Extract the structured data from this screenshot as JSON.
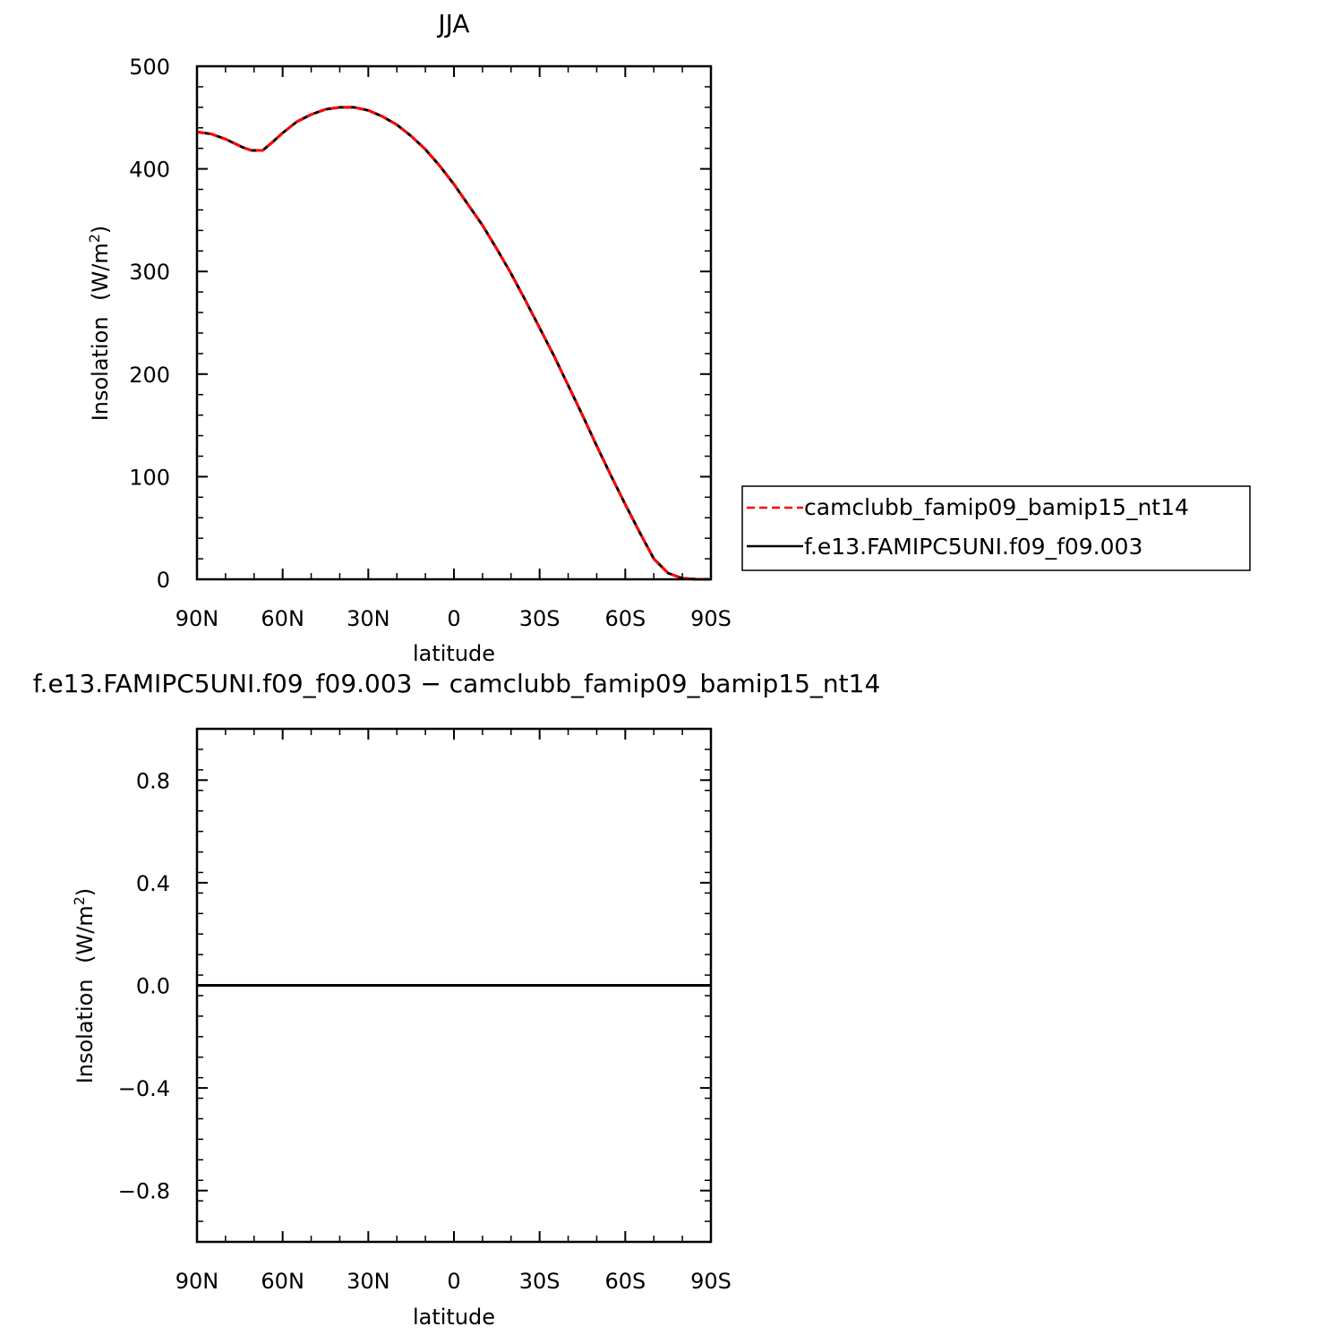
{
  "chart_data": [
    {
      "type": "line",
      "title": "JJA",
      "xlabel": "latitude",
      "ylabel": "Insolation",
      "ylabel_units": "(W/m",
      "ylabel_sup": "2",
      "ylabel_close": ")",
      "xlim": [
        -90,
        90
      ],
      "ylim": [
        0,
        500
      ],
      "x_ticks": [
        {
          "value": -90,
          "label": "90N"
        },
        {
          "value": -60,
          "label": "60N"
        },
        {
          "value": -30,
          "label": "30N"
        },
        {
          "value": 0,
          "label": "0"
        },
        {
          "value": 30,
          "label": "30S"
        },
        {
          "value": 60,
          "label": "60S"
        },
        {
          "value": 90,
          "label": "90S"
        }
      ],
      "y_ticks": [
        {
          "value": 0,
          "label": "0"
        },
        {
          "value": 100,
          "label": "100"
        },
        {
          "value": 200,
          "label": "200"
        },
        {
          "value": 300,
          "label": "300"
        },
        {
          "value": 400,
          "label": "400"
        },
        {
          "value": 500,
          "label": "500"
        }
      ],
      "legend_position": "right",
      "series": [
        {
          "name": "camclubb_famip09_bamip15_nt14",
          "color": "#ff0000",
          "dash": "dashed",
          "x": [
            -90,
            -85,
            -80,
            -77,
            -74,
            -71,
            -67,
            -64,
            -60,
            -55,
            -50,
            -45,
            -40,
            -35,
            -30,
            -25,
            -20,
            -15,
            -10,
            -5,
            0,
            5,
            10,
            15,
            20,
            25,
            30,
            35,
            40,
            45,
            50,
            55,
            60,
            65,
            70,
            75,
            80,
            85,
            90
          ],
          "y": [
            436,
            434,
            429,
            425,
            421,
            418,
            418,
            425,
            435,
            446,
            453,
            458,
            460,
            460,
            457,
            451,
            443,
            432,
            419,
            403,
            385,
            365,
            345,
            322,
            298,
            272,
            245,
            218,
            189,
            160,
            130,
            101,
            73,
            46,
            20,
            6,
            1,
            0,
            0
          ]
        },
        {
          "name": "f.e13.FAMIPC5UNI.f09_f09.003",
          "color": "#000000",
          "dash": "solid",
          "x": [
            -90,
            -85,
            -80,
            -77,
            -74,
            -71,
            -67,
            -64,
            -60,
            -55,
            -50,
            -45,
            -40,
            -35,
            -30,
            -25,
            -20,
            -15,
            -10,
            -5,
            0,
            5,
            10,
            15,
            20,
            25,
            30,
            35,
            40,
            45,
            50,
            55,
            60,
            65,
            70,
            75,
            80,
            85,
            90
          ],
          "y": [
            436,
            434,
            429,
            425,
            421,
            418,
            418,
            425,
            435,
            446,
            453,
            458,
            460,
            460,
            457,
            451,
            443,
            432,
            419,
            403,
            385,
            365,
            345,
            322,
            298,
            272,
            245,
            218,
            189,
            160,
            130,
            101,
            73,
            46,
            20,
            6,
            1,
            0,
            0
          ]
        }
      ]
    },
    {
      "type": "line",
      "title": "f.e13.FAMIPC5UNI.f09_f09.003 − camclubb_famip09_bamip15_nt14",
      "xlabel": "latitude",
      "ylabel": "Insolation",
      "ylabel_units": "(W/m",
      "ylabel_sup": "2",
      "ylabel_close": ")",
      "xlim": [
        -90,
        90
      ],
      "ylim": [
        -1,
        1
      ],
      "x_ticks": [
        {
          "value": -90,
          "label": "90N"
        },
        {
          "value": -60,
          "label": "60N"
        },
        {
          "value": -30,
          "label": "30N"
        },
        {
          "value": 0,
          "label": "0"
        },
        {
          "value": 30,
          "label": "30S"
        },
        {
          "value": 60,
          "label": "60S"
        },
        {
          "value": 90,
          "label": "90S"
        }
      ],
      "y_ticks": [
        {
          "value": -0.8,
          "label": "−0.8"
        },
        {
          "value": -0.4,
          "label": "−0.4"
        },
        {
          "value": 0.0,
          "label": "0.0"
        },
        {
          "value": 0.4,
          "label": "0.4"
        },
        {
          "value": 0.8,
          "label": "0.8"
        }
      ],
      "series": [
        {
          "color": "#000000",
          "dash": "solid",
          "x": [
            -90,
            90
          ],
          "y": [
            0,
            0
          ]
        }
      ]
    }
  ]
}
